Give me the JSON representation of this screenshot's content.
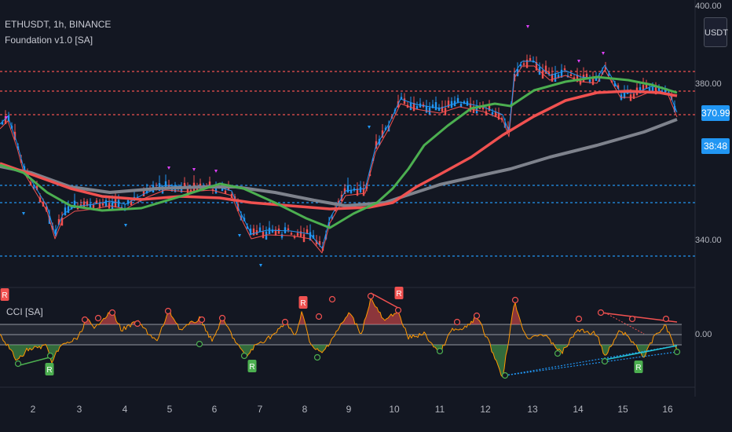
{
  "header": {
    "symbol": "ETHUSDT, 1h, BINANCE",
    "indicator": "Foundation v1.0 [SA]",
    "currency_button": "USDT"
  },
  "pane": {
    "label": "CCI [SA]"
  },
  "price_axis": {
    "ticks": [
      "400.00",
      "380.00",
      "340.00"
    ],
    "last_price": "370.99",
    "countdown": "38:48"
  },
  "oscillator_axis": {
    "ticks": [
      "0.00"
    ]
  },
  "x_axis": {
    "ticks": [
      "2",
      "3",
      "4",
      "5",
      "6",
      "7",
      "8",
      "9",
      "10",
      "11",
      "12",
      "13",
      "14",
      "15",
      "16"
    ]
  },
  "colors": {
    "background": "#131722",
    "up_line": "#4caf50",
    "down_line": "#f05150",
    "slow_ma": "#7e828c",
    "blue_line": "#2196f3",
    "price_tag": "#2196f3"
  },
  "markers": {
    "peak_letter": "R"
  }
}
